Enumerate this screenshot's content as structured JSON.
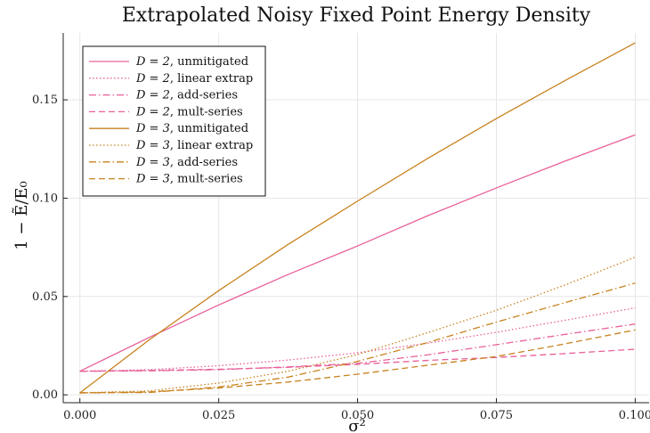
{
  "chart_data": {
    "type": "line",
    "title": "Extrapolated Noisy Fixed Point Energy Density",
    "xlabel": "σ²",
    "ylabel": "1 − Ẽ/E₀",
    "xlim": [
      -0.003,
      0.1025
    ],
    "ylim": [
      -0.004,
      0.184
    ],
    "xticks": [
      0.0,
      0.025,
      0.05,
      0.075,
      0.1
    ],
    "xtick_labels": [
      "0.000",
      "0.025",
      "0.050",
      "0.075",
      "0.100"
    ],
    "yticks": [
      0.0,
      0.05,
      0.1,
      0.15
    ],
    "ytick_labels": [
      "0.00",
      "0.05",
      "0.10",
      "0.15"
    ],
    "grid": true,
    "legend_position": "top-left",
    "x": [
      0.0,
      0.0125,
      0.025,
      0.0375,
      0.05,
      0.0625,
      0.075,
      0.0875,
      0.1
    ],
    "series": [
      {
        "name": "D = 2, unmitigated",
        "label_D": "D = 2",
        "label_rest": ", unmitigated",
        "color": "#e8609a",
        "dash": "solid",
        "values": [
          0.012,
          0.0292,
          0.0457,
          0.0612,
          0.0757,
          0.0909,
          0.1052,
          0.119,
          0.1322
        ]
      },
      {
        "name": "D = 2, linear extrap",
        "label_D": "D = 2",
        "label_rest": ", linear extrap",
        "color": "#e8609a",
        "dash": "dot",
        "values": [
          0.012,
          0.0128,
          0.0148,
          0.0177,
          0.0214,
          0.0262,
          0.0318,
          0.038,
          0.0442
        ]
      },
      {
        "name": "D = 2, add-series",
        "label_D": "D = 2",
        "label_rest": ", add-series",
        "color": "#e8609a",
        "dash": "dashdot",
        "values": [
          0.012,
          0.0122,
          0.0128,
          0.0142,
          0.016,
          0.0203,
          0.0255,
          0.0308,
          0.036
        ]
      },
      {
        "name": "D = 2, mult-series",
        "label_D": "D = 2",
        "label_rest": ", mult-series",
        "color": "#e8609a",
        "dash": "dash",
        "values": [
          0.012,
          0.0124,
          0.013,
          0.014,
          0.0155,
          0.0175,
          0.019,
          0.021,
          0.0232
        ]
      },
      {
        "name": "D = 3, unmitigated",
        "label_D": "D = 3",
        "label_rest": ", unmitigated",
        "color": "#c8821e",
        "dash": "solid",
        "values": [
          0.001,
          0.028,
          0.053,
          0.0765,
          0.0985,
          0.12,
          0.1405,
          0.16,
          0.179
        ]
      },
      {
        "name": "D = 3, linear extrap",
        "label_D": "D = 3",
        "label_rest": ", linear extrap",
        "color": "#c8821e",
        "dash": "dot",
        "values": [
          0.001,
          0.002,
          0.006,
          0.012,
          0.0205,
          0.0315,
          0.043,
          0.056,
          0.07
        ]
      },
      {
        "name": "D = 3, add-series",
        "label_D": "D = 3",
        "label_rest": ", add-series",
        "color": "#c8821e",
        "dash": "dashdot",
        "values": [
          0.001,
          0.0012,
          0.004,
          0.009,
          0.017,
          0.0265,
          0.037,
          0.047,
          0.0568
        ]
      },
      {
        "name": "D = 3, mult-series",
        "label_D": "D = 3",
        "label_rest": ", mult-series",
        "color": "#c8821e",
        "dash": "dash",
        "values": [
          0.001,
          0.0015,
          0.0035,
          0.0065,
          0.0105,
          0.015,
          0.0195,
          0.026,
          0.033
        ]
      }
    ]
  }
}
